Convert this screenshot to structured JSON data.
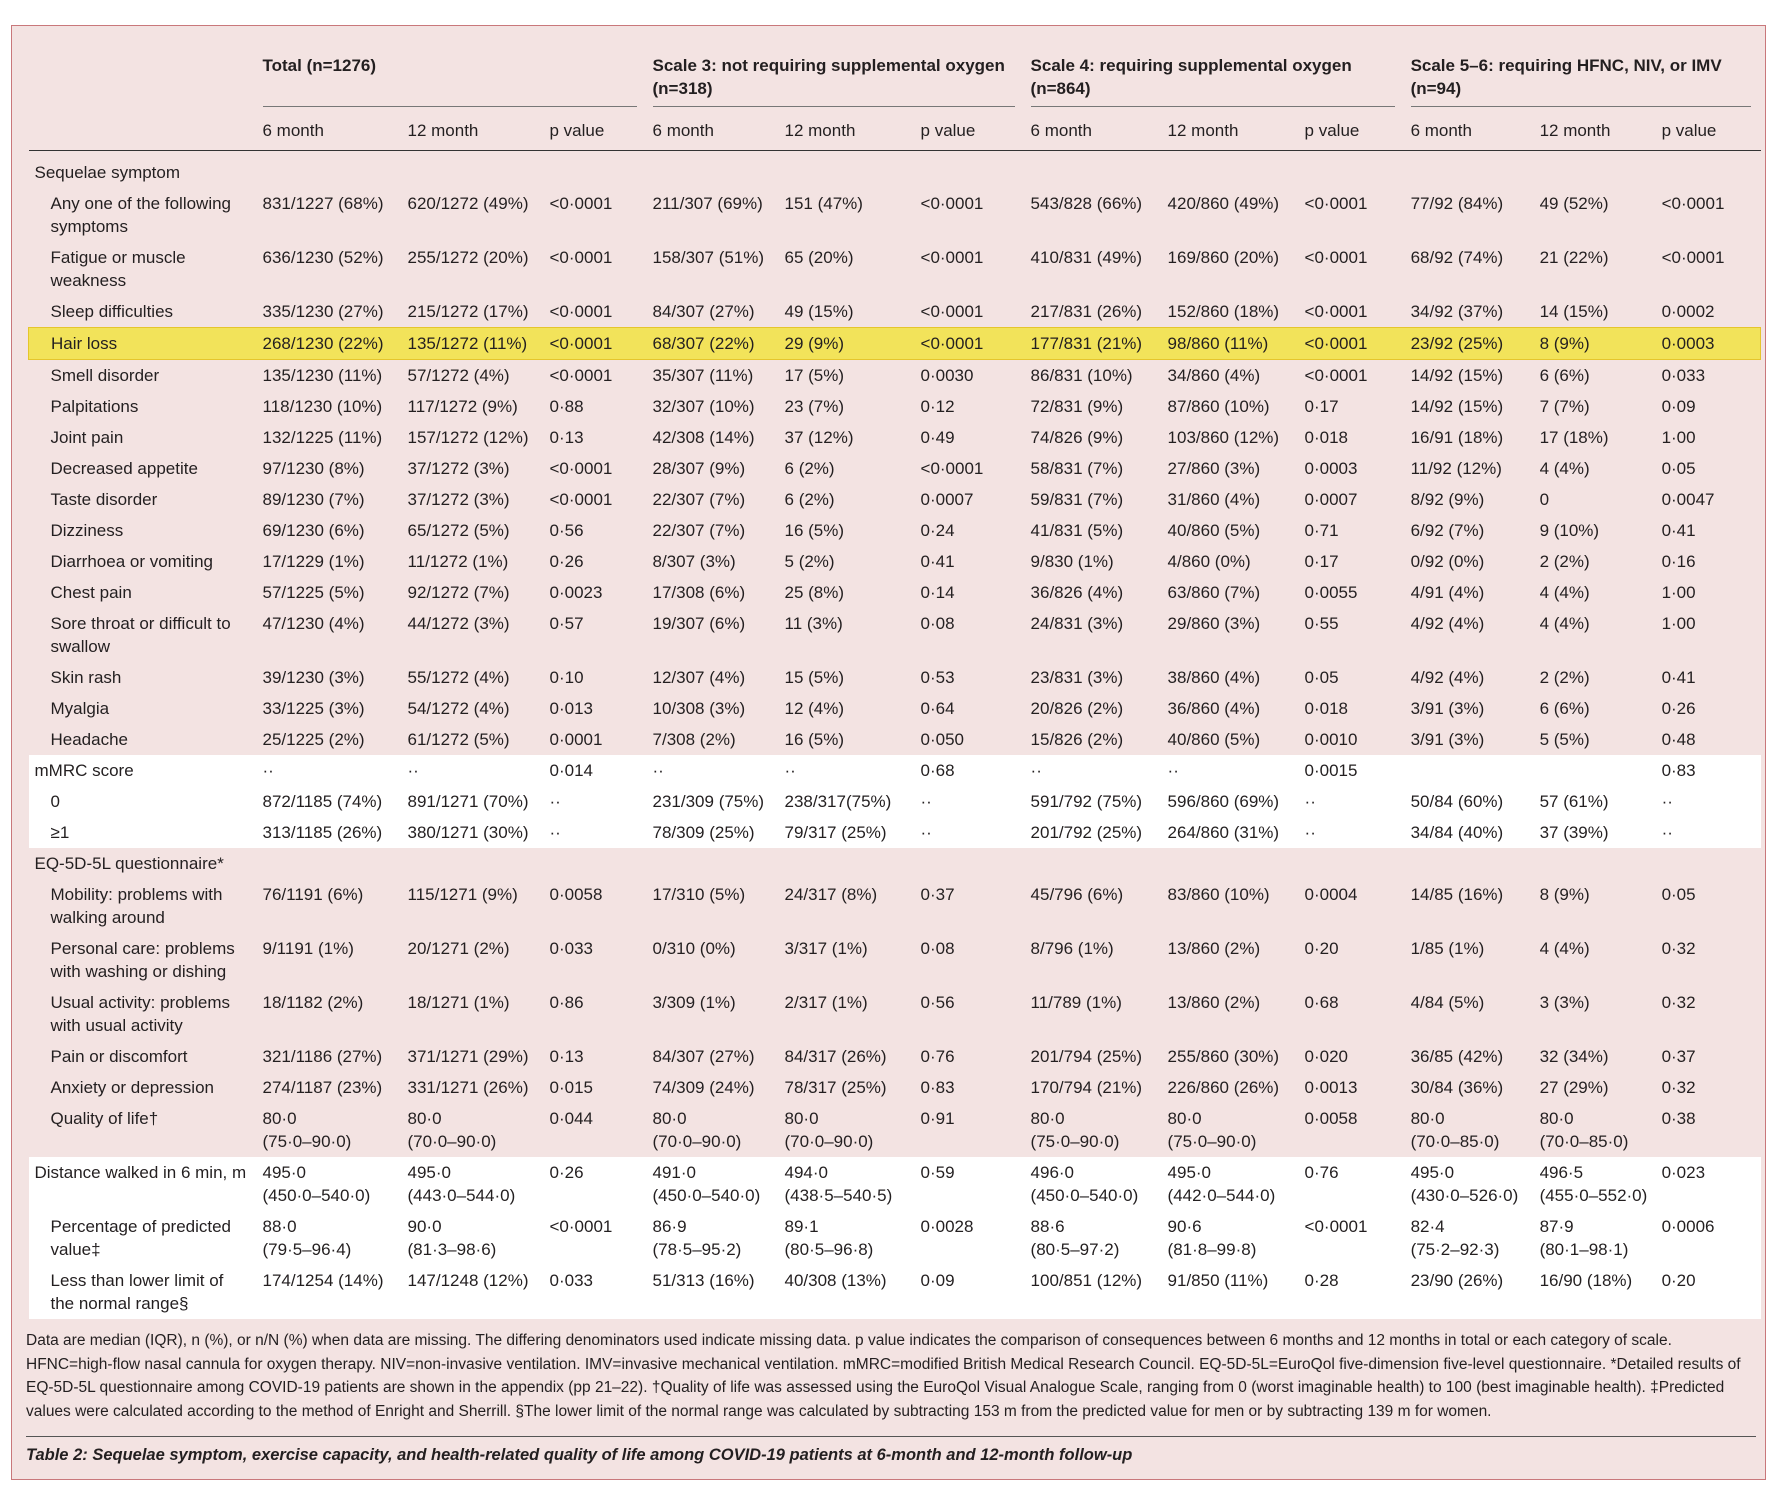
{
  "colors": {
    "background": "#f3e3e2",
    "highlight": "#f2e35a",
    "border": "#c9787b"
  },
  "groups": [
    "Total (n=1276)",
    "Scale 3: not requiring supplemental oxygen\n(n=318)",
    "Scale 4: requiring supplemental oxygen\n(n=864)",
    "Scale 5–6: requiring HFNC, NIV, or IMV\n(n=94)"
  ],
  "subheaders": [
    "6 month",
    "12 month",
    "p value"
  ],
  "rows": [
    {
      "label": "Sequelae symptom",
      "type": "sec",
      "values": []
    },
    {
      "label": "Any one of the following\nsymptoms",
      "values": [
        "831/1227 (68%)",
        "620/1272 (49%)",
        "<0·0001",
        "211/307 (69%)",
        "151 (47%)",
        "<0·0001",
        "543/828 (66%)",
        "420/860 (49%)",
        "<0·0001",
        "77/92 (84%)",
        "49 (52%)",
        "<0·0001"
      ]
    },
    {
      "label": "Fatigue or muscle\nweakness",
      "values": [
        "636/1230 (52%)",
        "255/1272 (20%)",
        "<0·0001",
        "158/307 (51%)",
        "65 (20%)",
        "<0·0001",
        "410/831 (49%)",
        "169/860 (20%)",
        "<0·0001",
        "68/92 (74%)",
        "21 (22%)",
        "<0·0001"
      ]
    },
    {
      "label": "Sleep difficulties",
      "values": [
        "335/1230 (27%)",
        "215/1272 (17%)",
        "<0·0001",
        "84/307 (27%)",
        "49 (15%)",
        "<0·0001",
        "217/831 (26%)",
        "152/860 (18%)",
        "<0·0001",
        "34/92 (37%)",
        "14 (15%)",
        "0·0002"
      ]
    },
    {
      "label": "Hair loss",
      "type": "hl",
      "values": [
        "268/1230 (22%)",
        "135/1272 (11%)",
        "<0·0001",
        "68/307 (22%)",
        "29 (9%)",
        "<0·0001",
        "177/831 (21%)",
        "98/860 (11%)",
        "<0·0001",
        "23/92 (25%)",
        "8 (9%)",
        "0·0003"
      ]
    },
    {
      "label": "Smell disorder",
      "values": [
        "135/1230 (11%)",
        "57/1272 (4%)",
        "<0·0001",
        "35/307 (11%)",
        "17 (5%)",
        "0·0030",
        "86/831 (10%)",
        "34/860 (4%)",
        "<0·0001",
        "14/92 (15%)",
        "6 (6%)",
        "0·033"
      ]
    },
    {
      "label": "Palpitations",
      "values": [
        "118/1230 (10%)",
        "117/1272 (9%)",
        "0·88",
        "32/307 (10%)",
        "23 (7%)",
        "0·12",
        "72/831 (9%)",
        "87/860 (10%)",
        "0·17",
        "14/92 (15%)",
        "7 (7%)",
        "0·09"
      ]
    },
    {
      "label": "Joint pain",
      "values": [
        "132/1225 (11%)",
        "157/1272 (12%)",
        "0·13",
        "42/308 (14%)",
        "37 (12%)",
        "0·49",
        "74/826 (9%)",
        "103/860 (12%)",
        "0·018",
        "16/91 (18%)",
        "17 (18%)",
        "1·00"
      ]
    },
    {
      "label": "Decreased appetite",
      "values": [
        "97/1230 (8%)",
        "37/1272 (3%)",
        "<0·0001",
        "28/307 (9%)",
        "6 (2%)",
        "<0·0001",
        "58/831 (7%)",
        "27/860 (3%)",
        "0·0003",
        "11/92 (12%)",
        "4 (4%)",
        "0·05"
      ]
    },
    {
      "label": "Taste disorder",
      "values": [
        "89/1230 (7%)",
        "37/1272 (3%)",
        "<0·0001",
        "22/307 (7%)",
        "6 (2%)",
        "0·0007",
        "59/831 (7%)",
        "31/860 (4%)",
        "0·0007",
        "8/92 (9%)",
        "0",
        "0·0047"
      ]
    },
    {
      "label": "Dizziness",
      "values": [
        "69/1230 (6%)",
        "65/1272 (5%)",
        "0·56",
        "22/307 (7%)",
        "16 (5%)",
        "0·24",
        "41/831 (5%)",
        "40/860 (5%)",
        "0·71",
        "6/92 (7%)",
        "9 (10%)",
        "0·41"
      ]
    },
    {
      "label": "Diarrhoea or vomiting",
      "values": [
        "17/1229 (1%)",
        "11/1272 (1%)",
        "0·26",
        "8/307 (3%)",
        "5 (2%)",
        "0·41",
        "9/830 (1%)",
        "4/860 (0%)",
        "0·17",
        "0/92 (0%)",
        "2 (2%)",
        "0·16"
      ]
    },
    {
      "label": "Chest pain",
      "values": [
        "57/1225 (5%)",
        "92/1272 (7%)",
        "0·0023",
        "17/308 (6%)",
        "25 (8%)",
        "0·14",
        "36/826 (4%)",
        "63/860 (7%)",
        "0·0055",
        "4/91 (4%)",
        "4 (4%)",
        "1·00"
      ]
    },
    {
      "label": "Sore throat or difficult to\nswallow",
      "values": [
        "47/1230 (4%)",
        "44/1272 (3%)",
        "0·57",
        "19/307 (6%)",
        "11 (3%)",
        "0·08",
        "24/831 (3%)",
        "29/860 (3%)",
        "0·55",
        "4/92 (4%)",
        "4 (4%)",
        "1·00"
      ]
    },
    {
      "label": "Skin rash",
      "values": [
        "39/1230 (3%)",
        "55/1272 (4%)",
        "0·10",
        "12/307 (4%)",
        "15 (5%)",
        "0·53",
        "23/831 (3%)",
        "38/860 (4%)",
        "0·05",
        "4/92 (4%)",
        "2 (2%)",
        "0·41"
      ]
    },
    {
      "label": "Myalgia",
      "values": [
        "33/1225 (3%)",
        "54/1272 (4%)",
        "0·013",
        "10/308 (3%)",
        "12 (4%)",
        "0·64",
        "20/826 (2%)",
        "36/860 (4%)",
        "0·018",
        "3/91 (3%)",
        "6 (6%)",
        "0·26"
      ]
    },
    {
      "label": "Headache",
      "values": [
        "25/1225 (2%)",
        "61/1272 (5%)",
        "0·0001",
        "7/308 (2%)",
        "16 (5%)",
        "0·050",
        "15/826 (2%)",
        "40/860 (5%)",
        "0·0010",
        "3/91 (3%)",
        "5 (5%)",
        "0·48"
      ]
    },
    {
      "label": "mMRC score",
      "type": "white top",
      "values": [
        "··",
        "··",
        "0·014",
        "··",
        "··",
        "0·68",
        "··",
        "··",
        "0·0015",
        "",
        "",
        "0·83"
      ]
    },
    {
      "label": "0",
      "type": "white",
      "values": [
        "872/1185 (74%)",
        "891/1271 (70%)",
        "··",
        "231/309 (75%)",
        "238/317(75%)",
        "··",
        "591/792 (75%)",
        "596/860 (69%)",
        "··",
        "50/84 (60%)",
        "57 (61%)",
        "··"
      ]
    },
    {
      "label": "≥1",
      "type": "white",
      "values": [
        "313/1185 (26%)",
        "380/1271 (30%)",
        "··",
        "78/309 (25%)",
        "79/317 (25%)",
        "··",
        "201/792 (25%)",
        "264/860 (31%)",
        "··",
        "34/84 (40%)",
        "37 (39%)",
        "··"
      ]
    },
    {
      "label": "EQ-5D-5L questionnaire*",
      "type": "sec",
      "values": []
    },
    {
      "label": "Mobility: problems with\nwalking around",
      "values": [
        "76/1191 (6%)",
        "115/1271 (9%)",
        "0·0058",
        "17/310 (5%)",
        "24/317 (8%)",
        "0·37",
        "45/796 (6%)",
        "83/860 (10%)",
        "0·0004",
        "14/85 (16%)",
        "8 (9%)",
        "0·05"
      ]
    },
    {
      "label": "Personal care: problems\nwith washing or dishing",
      "values": [
        "9/1191 (1%)",
        "20/1271 (2%)",
        "0·033",
        "0/310 (0%)",
        "3/317 (1%)",
        "0·08",
        "8/796 (1%)",
        "13/860 (2%)",
        "0·20",
        "1/85 (1%)",
        "4 (4%)",
        "0·32"
      ]
    },
    {
      "label": "Usual activity: problems\nwith usual activity",
      "values": [
        "18/1182 (2%)",
        "18/1271 (1%)",
        "0·86",
        "3/309 (1%)",
        "2/317 (1%)",
        "0·56",
        "11/789 (1%)",
        "13/860 (2%)",
        "0·68",
        "4/84 (5%)",
        "3 (3%)",
        "0·32"
      ]
    },
    {
      "label": "Pain or discomfort",
      "values": [
        "321/1186 (27%)",
        "371/1271 (29%)",
        "0·13",
        "84/307 (27%)",
        "84/317 (26%)",
        "0·76",
        "201/794 (25%)",
        "255/860 (30%)",
        "0·020",
        "36/85 (42%)",
        "32 (34%)",
        "0·37"
      ]
    },
    {
      "label": "Anxiety or depression",
      "values": [
        "274/1187 (23%)",
        "331/1271 (26%)",
        "0·015",
        "74/309 (24%)",
        "78/317 (25%)",
        "0·83",
        "170/794 (21%)",
        "226/860 (26%)",
        "0·0013",
        "30/84 (36%)",
        "27 (29%)",
        "0·32"
      ]
    },
    {
      "label": "Quality of life†",
      "values": [
        "80·0\n(75·0–90·0)",
        "80·0\n(70·0–90·0)",
        "0·044",
        "80·0\n(70·0–90·0)",
        "80·0\n(70·0–90·0)",
        "0·91",
        "80·0\n(75·0–90·0)",
        "80·0\n(75·0–90·0)",
        "0·0058",
        "80·0\n(70·0–85·0)",
        "80·0\n(70·0–85·0)",
        "0·38"
      ]
    },
    {
      "label": "Distance walked in 6 min, m",
      "type": "white top",
      "values": [
        "495·0\n(450·0–540·0)",
        "495·0\n(443·0–544·0)",
        "0·26",
        "491·0\n(450·0–540·0)",
        "494·0\n(438·5–540·5)",
        "0·59",
        "496·0\n(450·0–540·0)",
        "495·0\n(442·0–544·0)",
        "0·76",
        "495·0\n(430·0–526·0)",
        "496·5\n(455·0–552·0)",
        "0·023"
      ]
    },
    {
      "label": "Percentage of predicted\nvalue‡",
      "type": "white",
      "values": [
        "88·0\n(79·5–96·4)",
        "90·0\n(81·3–98·6)",
        "<0·0001",
        "86·9\n(78·5–95·2)",
        "89·1\n(80·5–96·8)",
        "0·0028",
        "88·6\n(80·5–97·2)",
        "90·6\n(81·8–99·8)",
        "<0·0001",
        "82·4\n(75·2–92·3)",
        "87·9\n(80·1–98·1)",
        "0·0006"
      ]
    },
    {
      "label": "Less than lower limit of\nthe normal range§",
      "type": "white",
      "values": [
        "174/1254 (14%)",
        "147/1248 (12%)",
        "0·033",
        "51/313 (16%)",
        "40/308 (13%)",
        "0·09",
        "100/851 (12%)",
        "91/850 (11%)",
        "0·28",
        "23/90 (26%)",
        "16/90 (18%)",
        "0·20"
      ]
    }
  ],
  "footnote": "Data are median (IQR), n (%), or n/N (%) when data are missing. The differing denominators used indicate missing data. p value indicates the comparison of consequences between 6 months and 12 months in total or each category of scale. HFNC=high-flow nasal cannula for oxygen therapy. NIV=non-invasive ventilation. IMV=invasive mechanical ventilation. mMRC=modified British Medical Research Council. EQ-5D-5L=EuroQol five-dimension five-level questionnaire. *Detailed results of EQ-5D-5L questionnaire among COVID-19 patients are shown in the appendix (pp 21–22). †Quality of life was assessed using the EuroQol Visual Analogue Scale, ranging from 0 (worst imaginable health) to 100 (best imaginable health). ‡Predicted values were calculated according to the method of Enright and Sherrill. §The lower limit of the normal range was calculated by subtracting 153 m from the predicted value for men or by subtracting 139 m for women.",
  "caption": {
    "label": "Table 2:",
    "text": " Sequelae symptom, exercise capacity, and health-related quality of life among COVID-19 patients at 6-month and 12-month follow-up"
  }
}
